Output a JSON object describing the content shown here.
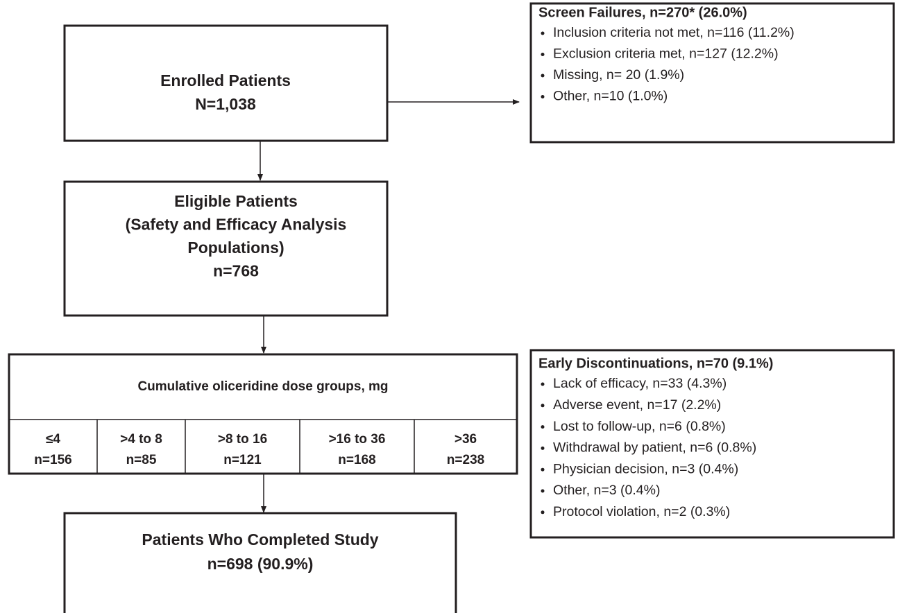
{
  "enrolled": {
    "lines": [
      "Enrolled Patients",
      "N=1,038"
    ]
  },
  "screen_failures": {
    "title": "Screen Failures, n=270* (26.0%)",
    "items": [
      "Inclusion criteria not met, n=116 (11.2%)",
      "Exclusion criteria met, n=127 (12.2%)",
      "Missing, n= 20 (1.9%)",
      "Other, n=10 (1.0%)"
    ]
  },
  "eligible": {
    "lines": [
      "Eligible Patients",
      "(Safety and Efficacy Analysis",
      "Populations)",
      "n=768"
    ]
  },
  "dose_groups": {
    "header": "Cumulative oliceridine dose groups, mg",
    "groups": [
      {
        "label": "≤4",
        "n": "n=156"
      },
      {
        "label": ">4 to 8",
        "n": "n=85"
      },
      {
        "label": ">8 to 16",
        "n": "n=121"
      },
      {
        "label": ">16 to 36",
        "n": "n=168"
      },
      {
        "label": ">36",
        "n": "n=238"
      }
    ]
  },
  "discontinuations": {
    "title": "Early Discontinuations, n=70 (9.1%)",
    "items": [
      "Lack of efficacy, n=33 (4.3%)",
      "Adverse event, n=17 (2.2%)",
      "Lost to follow-up, n=6 (0.8%)",
      "Withdrawal by patient, n=6 (0.8%)",
      "Physician decision, n=3 (0.4%)",
      "Other, n=3 (0.4%)",
      "Protocol violation, n=2 (0.3%)"
    ]
  },
  "completed": {
    "lines": [
      "Patients Who Completed Study",
      "n=698 (90.9%)"
    ]
  }
}
